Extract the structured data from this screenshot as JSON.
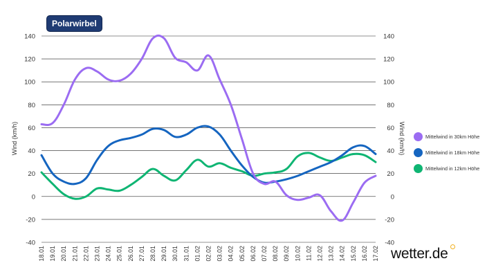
{
  "badge": {
    "title": "Polarwirbel"
  },
  "brand": {
    "text": "wetter.de",
    "dot_color": "#f2b01e"
  },
  "chart_data": {
    "type": "line",
    "title": "Polarwirbel",
    "ylabel": "Wind (km/h)",
    "ylabel_right": "Wind (km/h)",
    "ylim": [
      -40,
      140
    ],
    "yticks": [
      -40,
      -20,
      0,
      20,
      40,
      60,
      80,
      100,
      120,
      140
    ],
    "categories": [
      "18.01",
      "19.01",
      "20.01",
      "21.01",
      "22.01",
      "23.01",
      "24.01",
      "25.01",
      "26.01",
      "27.01",
      "28.01",
      "29.01",
      "30.01",
      "31.01",
      "01.02",
      "02.02",
      "03.02",
      "04.02",
      "05.02",
      "06.02",
      "07.02",
      "08.02",
      "09.02",
      "10.02",
      "11.02",
      "12.02",
      "13.02",
      "14.02",
      "15.02",
      "16.02",
      "17.02"
    ],
    "grid": true,
    "legend_position": "right",
    "series": [
      {
        "name": "Mittelwind in 30km Höhe",
        "color": "#9b6cf2",
        "values": [
          63,
          64,
          80,
          102,
          112,
          109,
          102,
          101,
          107,
          120,
          138,
          138,
          121,
          117,
          110,
          123,
          102,
          80,
          50,
          20,
          11,
          13,
          1,
          -3,
          -1,
          1,
          -13,
          -21,
          -5,
          12,
          18
        ]
      },
      {
        "name": "Mittelwind in 18km Höhe",
        "color": "#1565c0",
        "values": [
          36,
          20,
          13,
          11,
          16,
          32,
          44,
          49,
          51,
          54,
          59,
          58,
          52,
          54,
          60,
          61,
          54,
          40,
          27,
          17,
          12,
          13,
          15,
          18,
          22,
          26,
          30,
          36,
          43,
          44,
          37
        ]
      },
      {
        "name": "Mittelwind in 12km Höhe",
        "color": "#0fb573",
        "values": [
          21,
          11,
          2,
          -2,
          0,
          7,
          6,
          5,
          10,
          17,
          24,
          18,
          14,
          23,
          32,
          26,
          29,
          25,
          22,
          18,
          20,
          21,
          24,
          35,
          38,
          34,
          31,
          34,
          37,
          36,
          30
        ]
      }
    ]
  }
}
